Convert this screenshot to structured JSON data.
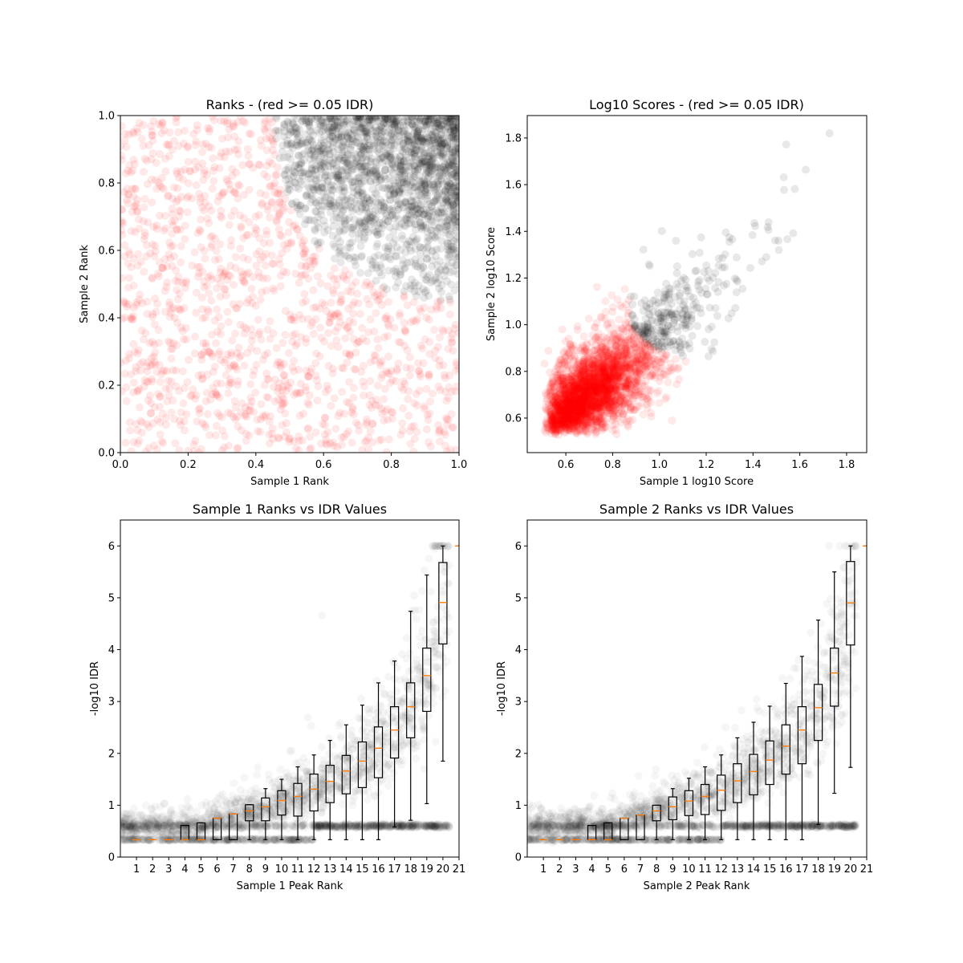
{
  "chart_data": [
    {
      "type": "scatter",
      "title": "Ranks - (red >= 0.05 IDR)",
      "xlabel": "Sample 1 Rank",
      "ylabel": "Sample 2 Rank",
      "xlim": [
        0,
        1
      ],
      "ylim": [
        0,
        1
      ],
      "xticks": [
        "0.0",
        "0.2",
        "0.4",
        "0.6",
        "0.8",
        "1.0"
      ],
      "yticks": [
        "0.0",
        "0.2",
        "0.4",
        "0.6",
        "0.8",
        "1.0"
      ],
      "colors": {
        "above_threshold": "#ff0000",
        "below_threshold": "#000000"
      },
      "grid": false
    },
    {
      "type": "scatter",
      "title": "Log10 Scores - (red >= 0.05 IDR)",
      "xlabel": "Sample 1 log10 Score",
      "ylabel": "Sample 2 log10 Score",
      "xlim": [
        0.435,
        1.886
      ],
      "ylim": [
        0.452,
        1.896
      ],
      "xticks": [
        "0.6",
        "0.8",
        "1.0",
        "1.2",
        "1.4",
        "1.6",
        "1.8"
      ],
      "yticks": [
        "0.6",
        "0.8",
        "1.0",
        "1.2",
        "1.4",
        "1.6",
        "1.8"
      ],
      "colors": {
        "above_threshold": "#ff0000",
        "below_threshold": "#000000"
      },
      "grid": false
    },
    {
      "type": "box",
      "title": "Sample 1 Ranks vs IDR Values",
      "xlabel": "Sample 1 Peak Rank",
      "ylabel": "-log10 IDR",
      "xlim": [
        0,
        21
      ],
      "ylim": [
        0,
        6.5
      ],
      "xticks": [
        "1",
        "2",
        "3",
        "4",
        "5",
        "6",
        "7",
        "8",
        "9",
        "10",
        "11",
        "12",
        "13",
        "14",
        "15",
        "16",
        "17",
        "18",
        "19",
        "20",
        "21"
      ],
      "yticks": [
        "0",
        "1",
        "2",
        "3",
        "4",
        "5",
        "6"
      ],
      "median_color": "#ff7f0e",
      "boxes_whislo_q1_med_q3_whishi": [
        [
          0.335,
          0.335,
          0.335,
          0.335,
          0.335
        ],
        [
          0.335,
          0.335,
          0.335,
          0.335,
          0.335
        ],
        [
          0.335,
          0.335,
          0.335,
          0.335,
          0.335
        ],
        [
          0.335,
          0.335,
          0.335,
          0.61,
          0.61
        ],
        [
          0.335,
          0.335,
          0.335,
          0.66,
          0.66
        ],
        [
          0.335,
          0.335,
          0.75,
          0.75,
          0.75
        ],
        [
          0.335,
          0.335,
          0.83,
          0.83,
          0.83
        ],
        [
          0.335,
          0.7,
          0.89,
          1.01,
          1.01
        ],
        [
          0.335,
          0.7,
          0.97,
          1.14,
          1.32
        ],
        [
          0.335,
          0.81,
          1.09,
          1.28,
          1.5
        ],
        [
          0.335,
          0.79,
          1.17,
          1.42,
          1.74
        ],
        [
          0.335,
          0.89,
          1.31,
          1.6,
          1.97
        ],
        [
          0.335,
          1.05,
          1.46,
          1.77,
          2.25
        ],
        [
          0.335,
          1.22,
          1.66,
          1.96,
          2.55
        ],
        [
          0.335,
          1.34,
          1.85,
          2.22,
          2.93
        ],
        [
          0.335,
          1.53,
          2.1,
          2.51,
          3.36
        ],
        [
          0.58,
          1.91,
          2.45,
          2.9,
          3.78
        ],
        [
          0.71,
          2.3,
          2.9,
          3.36,
          4.74
        ],
        [
          1.03,
          2.81,
          3.5,
          4.03,
          5.44
        ],
        [
          1.85,
          4.11,
          4.91,
          5.68,
          6.0
        ],
        [
          6,
          6,
          6,
          6,
          6
        ]
      ]
    },
    {
      "type": "box",
      "title": "Sample 2 Ranks vs IDR Values",
      "xlabel": "Sample 2 Peak Rank",
      "ylabel": "-log10 IDR",
      "xlim": [
        0,
        21
      ],
      "ylim": [
        0,
        6.5
      ],
      "xticks": [
        "1",
        "2",
        "3",
        "4",
        "5",
        "6",
        "7",
        "8",
        "9",
        "10",
        "11",
        "12",
        "13",
        "14",
        "15",
        "16",
        "17",
        "18",
        "19",
        "20",
        "21"
      ],
      "yticks": [
        "0",
        "1",
        "2",
        "3",
        "4",
        "5",
        "6"
      ],
      "median_color": "#ff7f0e",
      "boxes_whislo_q1_med_q3_whishi": [
        [
          0.335,
          0.335,
          0.335,
          0.335,
          0.335
        ],
        [
          0.335,
          0.335,
          0.335,
          0.335,
          0.335
        ],
        [
          0.335,
          0.335,
          0.335,
          0.335,
          0.335
        ],
        [
          0.335,
          0.335,
          0.335,
          0.61,
          0.61
        ],
        [
          0.335,
          0.335,
          0.335,
          0.66,
          0.66
        ],
        [
          0.335,
          0.335,
          0.75,
          0.75,
          0.75
        ],
        [
          0.335,
          0.335,
          0.81,
          0.81,
          0.81
        ],
        [
          0.335,
          0.7,
          0.89,
          1.0,
          1.0
        ],
        [
          0.335,
          0.72,
          0.97,
          1.16,
          1.32
        ],
        [
          0.335,
          0.8,
          1.08,
          1.28,
          1.52
        ],
        [
          0.335,
          0.82,
          1.17,
          1.4,
          1.74
        ],
        [
          0.335,
          0.9,
          1.29,
          1.58,
          1.97
        ],
        [
          0.335,
          1.05,
          1.47,
          1.8,
          2.3
        ],
        [
          0.335,
          1.2,
          1.65,
          1.98,
          2.6
        ],
        [
          0.335,
          1.4,
          1.87,
          2.24,
          2.91
        ],
        [
          0.335,
          1.6,
          2.14,
          2.55,
          3.35
        ],
        [
          0.335,
          1.8,
          2.45,
          2.9,
          3.87
        ],
        [
          0.63,
          2.25,
          2.88,
          3.33,
          4.57
        ],
        [
          1.23,
          2.91,
          3.55,
          4.03,
          5.5
        ],
        [
          1.73,
          4.09,
          4.9,
          5.7,
          6.0
        ],
        [
          6,
          6,
          6,
          6,
          6
        ]
      ]
    }
  ]
}
